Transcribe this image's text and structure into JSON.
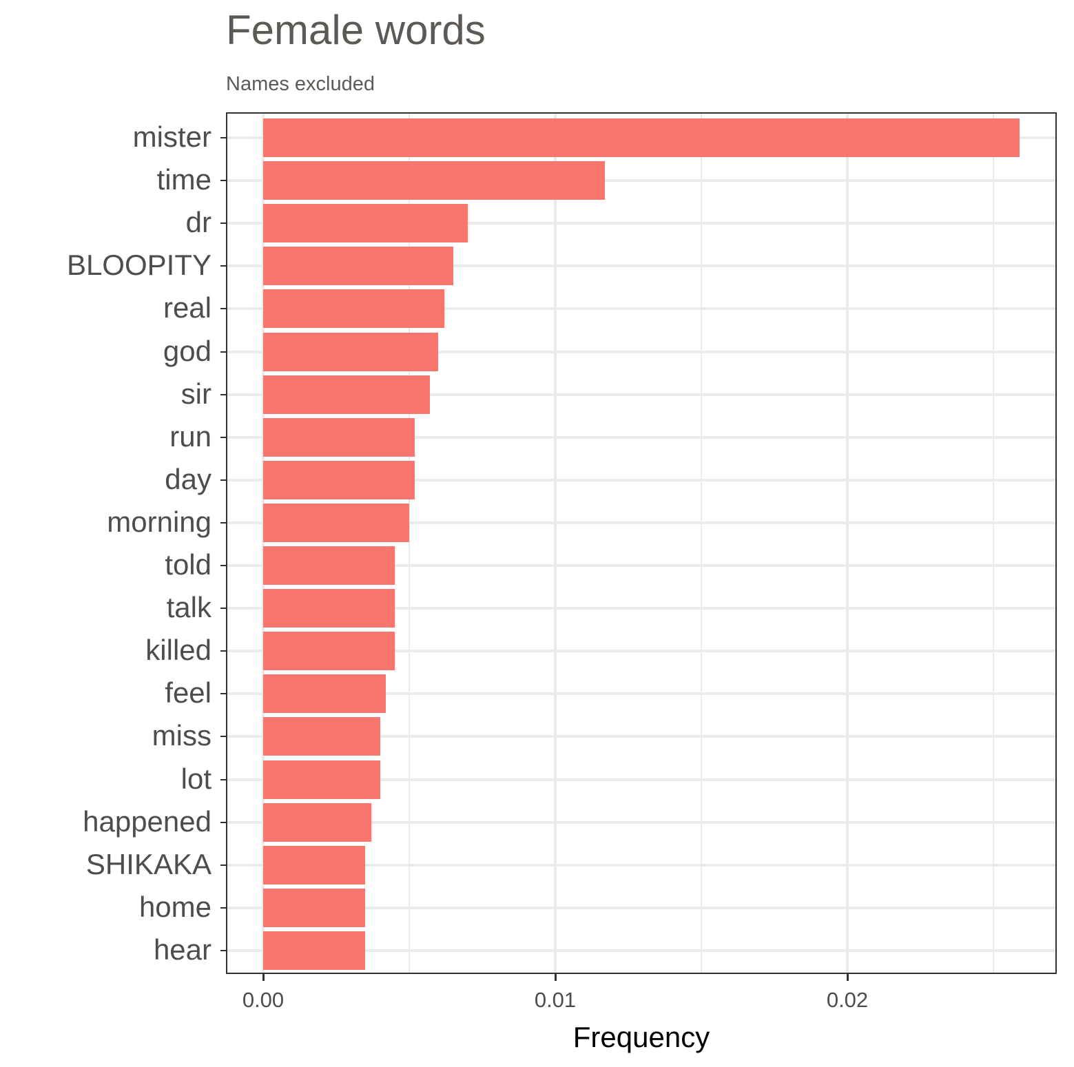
{
  "chart_data": {
    "type": "bar",
    "orientation": "horizontal",
    "title": "Female words",
    "subtitle": "Names excluded",
    "xlabel": "Frequency",
    "ylabel": "",
    "xlim": [
      -0.00127,
      0.0272
    ],
    "x_ticks": [
      0.0,
      0.01,
      0.02
    ],
    "x_tick_labels": [
      "0.00",
      "0.01",
      "0.02"
    ],
    "grid": true,
    "legend": null,
    "bar_color": "#F8766D",
    "categories": [
      "mister",
      "time",
      "dr",
      "BLOOPITY",
      "real",
      "god",
      "sir",
      "run",
      "day",
      "morning",
      "told",
      "talk",
      "killed",
      "feel",
      "miss",
      "lot",
      "happened",
      "SHIKAKA",
      "home",
      "hear"
    ],
    "values": [
      0.0259,
      0.0117,
      0.007,
      0.0065,
      0.0062,
      0.006,
      0.0057,
      0.0052,
      0.0052,
      0.005,
      0.0045,
      0.0045,
      0.0045,
      0.0042,
      0.004,
      0.004,
      0.0037,
      0.0035,
      0.0035,
      0.0035
    ]
  },
  "colors": {
    "bar": "#F8766D",
    "grid": "#EBEBEB",
    "border": "#333333",
    "title": "#5D5955",
    "axis_text": "#4D4D4D"
  }
}
